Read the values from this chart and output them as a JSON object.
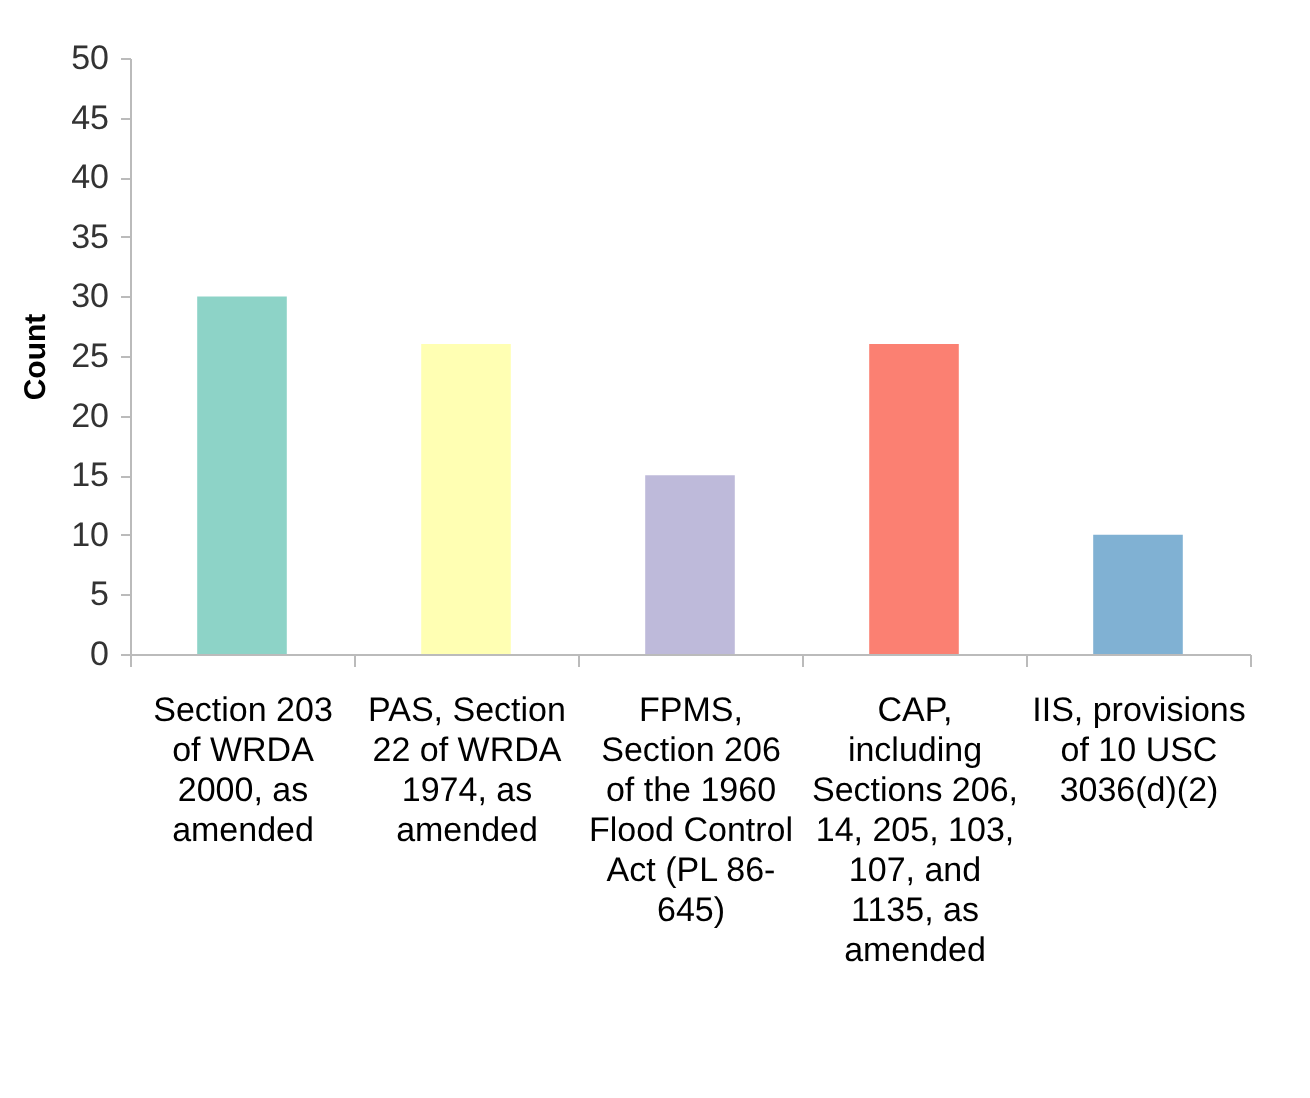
{
  "chart_data": {
    "type": "bar",
    "ylabel": "Count",
    "categories": [
      "Section 203 of WRDA 2000, as amended",
      "PAS, Section 22 of WRDA 1974, as amended",
      "FPMS, Section 206 of the 1960 Flood Control Act (PL 86-645)",
      "CAP, including Sections 206, 14, 205, 103, 107, and 1135, as amended",
      "IIS, provisions of 10 USC 3036(d)(2)"
    ],
    "values": [
      30,
      26,
      15,
      26,
      10
    ],
    "colors": [
      "#8dd3c7",
      "#ffffb3",
      "#bebada",
      "#fb8072",
      "#80b1d3"
    ],
    "ylim": [
      0,
      50
    ],
    "yticks": [
      0,
      5,
      10,
      15,
      20,
      25,
      30,
      35,
      40,
      45,
      50
    ],
    "grid": false,
    "legend": false
  }
}
